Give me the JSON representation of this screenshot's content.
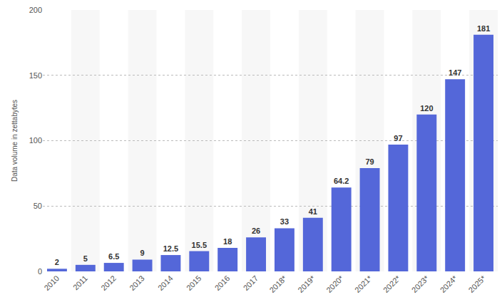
{
  "chart_data": {
    "type": "bar",
    "y_label": "Data volume in zettabytes",
    "categories": [
      "2010",
      "2011",
      "2012",
      "2013",
      "2014",
      "2015",
      "2016",
      "2017",
      "2018*",
      "2019*",
      "2020*",
      "2021*",
      "2022*",
      "2023*",
      "2024*",
      "2025*"
    ],
    "values": [
      2,
      5,
      6.5,
      9,
      12.5,
      15.5,
      18,
      26,
      33,
      41,
      64.2,
      79,
      97,
      120,
      147,
      181
    ],
    "color": "#5467d9",
    "ylim": [
      0,
      200
    ],
    "yticks": [
      0,
      50,
      100,
      150,
      200
    ],
    "grid": true,
    "data_labels": true
  }
}
